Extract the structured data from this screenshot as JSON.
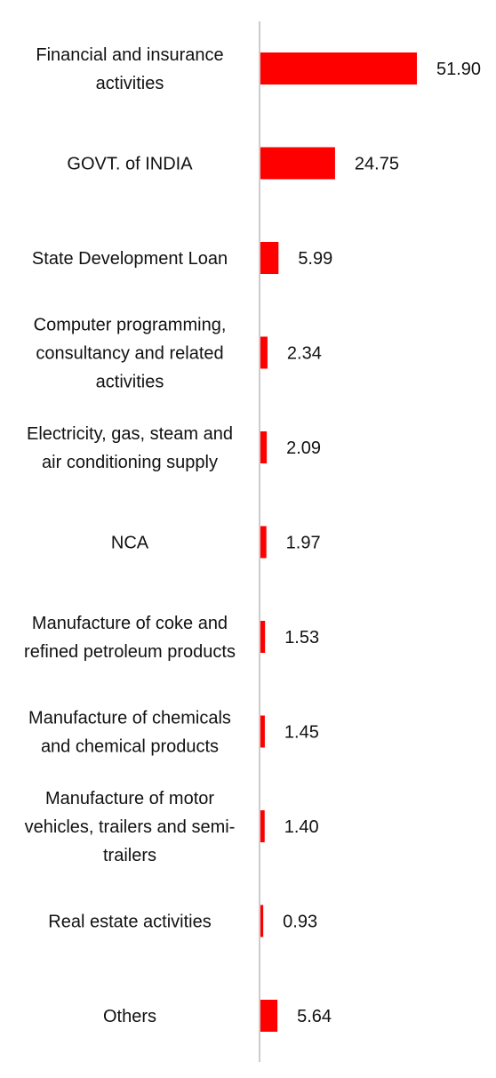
{
  "chart_data": {
    "type": "bar",
    "orientation": "horizontal",
    "bar_color": "#ff0000",
    "axis_color": "#cccccc",
    "grid": false,
    "legend": "none",
    "xlim": [
      0,
      60
    ],
    "categories": [
      "Financial and insurance activities",
      "GOVT. of INDIA",
      "State Development Loan",
      "Computer programming, consultancy and related activities",
      "Electricity, gas, steam and air conditioning supply",
      "NCA",
      "Manufacture of coke and refined petroleum products",
      "Manufacture of chemicals and chemical products",
      "Manufacture of motor vehicles, trailers and semi-trailers",
      "Real estate activities",
      "Others"
    ],
    "category_lines": [
      [
        "Financial and insurance",
        "activities"
      ],
      [
        "GOVT. of INDIA"
      ],
      [
        "State Development Loan"
      ],
      [
        "Computer programming,",
        "consultancy and related",
        "activities"
      ],
      [
        "Electricity, gas, steam and",
        "air conditioning supply"
      ],
      [
        "NCA"
      ],
      [
        "Manufacture of coke and",
        "refined petroleum products"
      ],
      [
        "Manufacture of chemicals",
        "and chemical products"
      ],
      [
        "Manufacture of motor",
        "vehicles, trailers and semi-",
        "trailers"
      ],
      [
        "Real estate activities"
      ],
      [
        "Others"
      ]
    ],
    "values": [
      51.9,
      24.75,
      5.99,
      2.34,
      2.09,
      1.97,
      1.53,
      1.45,
      1.4,
      0.93,
      5.64
    ],
    "value_labels": [
      "51.90",
      "24.75",
      "5.99",
      "2.34",
      "2.09",
      "1.97",
      "1.53",
      "1.45",
      "1.40",
      "0.93",
      "5.64"
    ]
  }
}
